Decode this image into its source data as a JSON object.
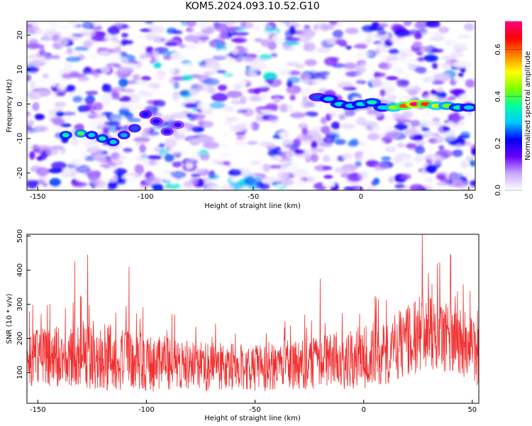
{
  "page": {
    "title": "KOM5.2024.093.10.52.G10"
  },
  "chart_data": [
    {
      "type": "heatmap",
      "xlabel": "Height of straight line (km)",
      "ylabel": "Frequency (Hz)",
      "xlim": [
        -155,
        53
      ],
      "ylim": [
        -25,
        24
      ],
      "xticks": [
        -150,
        -100,
        -50,
        0,
        50
      ],
      "yticks": [
        -20,
        -10,
        0,
        10,
        20
      ],
      "colorbar": {
        "label": "Normalized spectral amplitude",
        "range": [
          0,
          0.72
        ],
        "ticks": [
          0.0,
          0.2,
          0.4,
          0.6
        ],
        "colors": [
          "#ffffff",
          "#c8a8ff",
          "#6a00ff",
          "#0000ff",
          "#00c8ff",
          "#00ffa0",
          "#80ff00",
          "#ffff00",
          "#ff8000",
          "#ff0000",
          "#ff0080"
        ]
      },
      "ridge": {
        "x": [
          -137,
          -130,
          -125,
          -120,
          -115,
          -110,
          -105,
          -100,
          -95,
          -90,
          -85,
          -20,
          -15,
          -10,
          -5,
          0,
          5,
          10,
          15,
          20,
          25,
          30,
          35,
          40,
          45,
          50
        ],
        "y": [
          -9,
          -8.5,
          -9,
          -10,
          -11,
          -9,
          -7,
          -3,
          -5,
          -8,
          -6,
          2,
          1.5,
          0,
          -0.5,
          0,
          0.5,
          -1,
          -1,
          -0.5,
          0,
          0,
          -0.5,
          -0.5,
          -1,
          -1
        ],
        "amplitude": [
          0.35,
          0.4,
          0.3,
          0.35,
          0.3,
          0.28,
          0.25,
          0.22,
          0.2,
          0.2,
          0.18,
          0.25,
          0.3,
          0.32,
          0.3,
          0.33,
          0.35,
          0.3,
          0.45,
          0.6,
          0.72,
          0.62,
          0.48,
          0.42,
          0.35,
          0.3
        ]
      },
      "grid": false
    },
    {
      "type": "line",
      "xlabel": "Height of straight line (km)",
      "ylabel": "SNR (10 * v/v)",
      "xlim": [
        -155,
        53
      ],
      "ylim": [
        10,
        505
      ],
      "xticks": [
        -150,
        -100,
        -50,
        0,
        50
      ],
      "yticks": [
        100,
        200,
        300,
        400,
        500
      ],
      "color": "#f03030",
      "envelope": {
        "x": [
          -155,
          -140,
          -130,
          -120,
          -110,
          -100,
          -90,
          -80,
          -70,
          -60,
          -50,
          -40,
          -30,
          -20,
          -10,
          0,
          10,
          20,
          25,
          30,
          40,
          50,
          53
        ],
        "mean": [
          140,
          150,
          155,
          150,
          140,
          130,
          125,
          120,
          120,
          115,
          115,
          120,
          125,
          130,
          135,
          145,
          160,
          190,
          215,
          220,
          200,
          165,
          150
        ],
        "spread": [
          70,
          80,
          90,
          90,
          80,
          75,
          70,
          65,
          65,
          60,
          60,
          65,
          65,
          70,
          75,
          80,
          90,
          95,
          100,
          100,
          95,
          85,
          80
        ]
      },
      "peaks": [
        {
          "x": 27,
          "y": 505
        },
        {
          "x": -127,
          "y": 445
        },
        {
          "x": -133,
          "y": 425
        },
        {
          "x": 40,
          "y": 445
        },
        {
          "x": -108,
          "y": 410
        },
        {
          "x": -20,
          "y": 375
        },
        {
          "x": 34,
          "y": 420
        }
      ],
      "grid": false
    }
  ]
}
